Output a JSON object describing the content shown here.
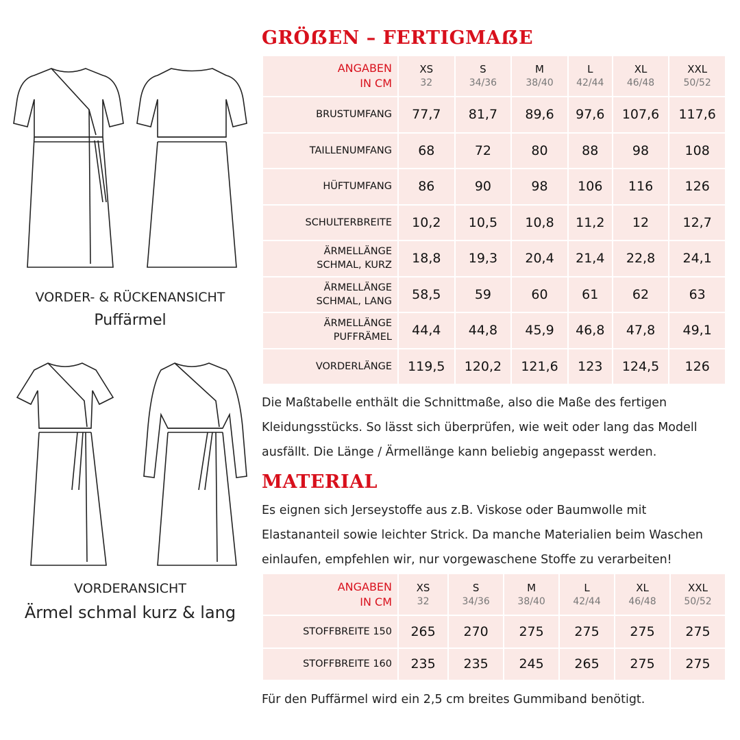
{
  "sizes_title": "GRÖẞEN – FERTIGMAẞE",
  "size_table": {
    "header_label": [
      "ANGABEN",
      "IN CM"
    ],
    "columns": [
      {
        "size": "XS",
        "numbers": "32"
      },
      {
        "size": "S",
        "numbers": "34/36"
      },
      {
        "size": "M",
        "numbers": "38/40"
      },
      {
        "size": "L",
        "numbers": "42/44"
      },
      {
        "size": "XL",
        "numbers": "46/48"
      },
      {
        "size": "XXL",
        "numbers": "50/52"
      }
    ],
    "rows": [
      {
        "label": [
          "BRUSTUMFANG"
        ],
        "values": [
          "77,7",
          "81,7",
          "89,6",
          "97,6",
          "107,6",
          "117,6"
        ]
      },
      {
        "label": [
          "TAILLENUMFANG"
        ],
        "values": [
          "68",
          "72",
          "80",
          "88",
          "98",
          "108"
        ]
      },
      {
        "label": [
          "HÜFTUMFANG"
        ],
        "values": [
          "86",
          "90",
          "98",
          "106",
          "116",
          "126"
        ]
      },
      {
        "label": [
          "SCHULTERBREITE"
        ],
        "values": [
          "10,2",
          "10,5",
          "10,8",
          "11,2",
          "12",
          "12,7"
        ]
      },
      {
        "label": [
          "ÄRMELLÄNGE",
          "SCHMAL, KURZ"
        ],
        "values": [
          "18,8",
          "19,3",
          "20,4",
          "21,4",
          "22,8",
          "24,1"
        ]
      },
      {
        "label": [
          "ÄRMELLÄNGE",
          "SCHMAL, LANG"
        ],
        "values": [
          "58,5",
          "59",
          "60",
          "61",
          "62",
          "63"
        ]
      },
      {
        "label": [
          "ÄRMELLÄNGE",
          "PUFFRÄMEL"
        ],
        "values": [
          "44,4",
          "44,8",
          "45,9",
          "46,8",
          "47,8",
          "49,1"
        ]
      },
      {
        "label": [
          "VORDERLÄNGE"
        ],
        "values": [
          "119,5",
          "120,2",
          "121,6",
          "123",
          "124,5",
          "126"
        ]
      }
    ]
  },
  "size_note": "Die Maßtabelle enthält die Schnittmaße, also die Maße des fertigen Kleidungsstücks. So lässt sich überprüfen, wie weit oder lang das Modell ausfällt. Die Länge / Ärmellänge kann beliebig angepasst werden.",
  "material_title": "MATERIAL",
  "material_text": "Es eignen sich Jerseystoffe aus z.B. Viskose  oder Baumwolle mit Elastananteil sowie leichter Strick. Da manche Materialien beim Waschen einlaufen, empfehlen wir, nur vorgewaschene Stoffe zu verarbeiten!",
  "material_table": {
    "header_label": [
      "ANGABEN",
      "IN CM"
    ],
    "columns": [
      {
        "size": "XS",
        "numbers": "32"
      },
      {
        "size": "S",
        "numbers": "34/36"
      },
      {
        "size": "M",
        "numbers": "38/40"
      },
      {
        "size": "L",
        "numbers": "42/44"
      },
      {
        "size": "XL",
        "numbers": "46/48"
      },
      {
        "size": "XXL",
        "numbers": "50/52"
      }
    ],
    "rows": [
      {
        "label": [
          "STOFFBREITE 150"
        ],
        "values": [
          "265",
          "270",
          "275",
          "275",
          "275",
          "275"
        ]
      },
      {
        "label": [
          "STOFFBREITE 160"
        ],
        "values": [
          "235",
          "235",
          "245",
          "265",
          "275",
          "275"
        ]
      }
    ]
  },
  "footer_note": "Für den Puffärmel wird ein 2,5 cm breites Gummiband benötigt.",
  "illustrations": {
    "top_caption": "VORDER- & RÜCKENANSICHT",
    "top_subcaption": "Puffärmel",
    "bottom_caption": "VORDERANSICHT",
    "bottom_subcaption": "Ärmel schmal kurz & lang"
  },
  "colors": {
    "accent": "#d8101c",
    "table_bg": "#fbe9e6"
  }
}
